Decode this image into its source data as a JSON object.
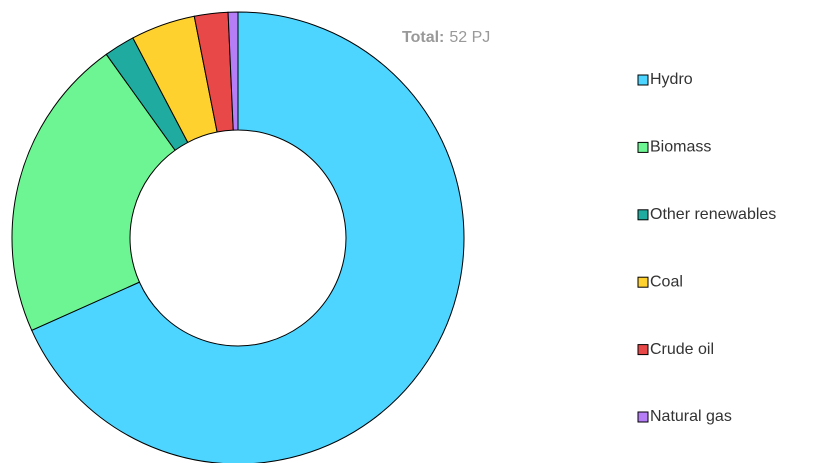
{
  "chart_data": {
    "type": "donut",
    "total_label": "Total:",
    "total_value": "52 PJ",
    "categories": [
      "Hydro",
      "Biomass",
      "Other renewables",
      "Coal",
      "Crude oil",
      "Natural gas"
    ],
    "values": [
      68.3,
      21.8,
      2.2,
      4.6,
      2.4,
      0.7
    ],
    "colors": [
      "#4dd4ff",
      "#6ef593",
      "#20aba0",
      "#fed12f",
      "#e84848",
      "#b57ef7"
    ],
    "legend": "right"
  }
}
